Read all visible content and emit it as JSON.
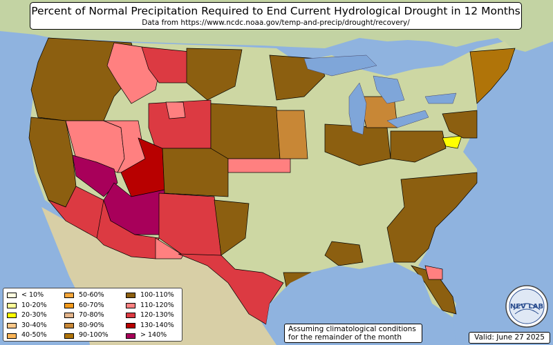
{
  "title": "Percent of Normal Precipitation Required to End Current Hydrological Drought in 12 Months",
  "subtitle": "Data from https://www.ncdc.noaa.gov/temp-and-precip/drought/recovery/",
  "legend": {
    "col1": [
      {
        "label": "< 10%",
        "color": "#ffffe0"
      },
      {
        "label": "10-20%",
        "color": "#ffff99"
      },
      {
        "label": "20-30%",
        "color": "#ffff00"
      },
      {
        "label": "30-40%",
        "color": "#fcc88a"
      },
      {
        "label": "40-50%",
        "color": "#fbb659"
      }
    ],
    "col2": [
      {
        "label": "50-60%",
        "color": "#f6a73a"
      },
      {
        "label": "60-70%",
        "color": "#f29a1c"
      },
      {
        "label": "70-80%",
        "color": "#e3b48a"
      },
      {
        "label": "80-90%",
        "color": "#c88736"
      },
      {
        "label": "90-100%",
        "color": "#b07409"
      }
    ],
    "col3": [
      {
        "label": "100-110%",
        "color": "#8c5f10"
      },
      {
        "label": "110-120%",
        "color": "#ff8080"
      },
      {
        "label": "120-130%",
        "color": "#dc3a42"
      },
      {
        "label": "130-140%",
        "color": "#b80000"
      },
      {
        "label": "> 140%",
        "color": "#a8005a"
      }
    ]
  },
  "assumption": [
    "Assuming climatological conditions",
    "for the remainder of the month"
  ],
  "valid": "Valid: June 27 2025",
  "logo_text": "NEV LAB",
  "colors": {
    "ocean": "#8fb3df",
    "land": "#cdd7a3",
    "mexico": "#d8cfa6",
    "canada": "#c3d3a3",
    "lake": "#7fa6d9"
  }
}
